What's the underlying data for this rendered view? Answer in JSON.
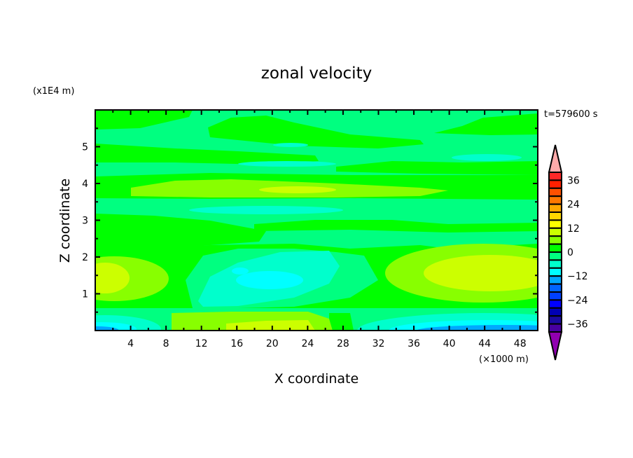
{
  "chart_data": {
    "type": "contour",
    "title": "zonal velocity",
    "xlabel": "X coordinate",
    "ylabel": "Z coordinate",
    "x_unit_label": "(×1000 m)",
    "y_unit_label": "(x1E4 m)",
    "time_label": "t=579600 s",
    "xlim": [
      0,
      50
    ],
    "ylim": [
      0,
      6
    ],
    "x_ticks": [
      4,
      8,
      12,
      16,
      20,
      24,
      28,
      32,
      36,
      40,
      44,
      48
    ],
    "y_ticks": [
      1,
      2,
      3,
      4,
      5
    ],
    "colorbar": {
      "levels": [
        -40,
        -36,
        -32,
        -28,
        -24,
        -20,
        -16,
        -12,
        -8,
        -4,
        0,
        4,
        8,
        12,
        16,
        20,
        24,
        28,
        32,
        36,
        40
      ],
      "tick_labels": [
        "36",
        "24",
        "12",
        "0",
        "-12",
        "-24",
        "-36"
      ],
      "tick_values": [
        36,
        24,
        12,
        0,
        -12,
        -24,
        -36
      ],
      "colors_high_to_low": [
        "#ff2828",
        "#ff2000",
        "#ff5000",
        "#ff7800",
        "#ffa800",
        "#ffd800",
        "#ffff00",
        "#ccff00",
        "#88ff00",
        "#00ff00",
        "#00ff80",
        "#00ffcc",
        "#00ffff",
        "#00a8ff",
        "#0064ff",
        "#0040ff",
        "#0000ff",
        "#0000b4",
        "#1a0aa0",
        "#4800a0"
      ],
      "over_color": "#ffaaaa",
      "under_color": "#9000b0"
    },
    "field_note_range": [
      -16,
      12
    ]
  }
}
